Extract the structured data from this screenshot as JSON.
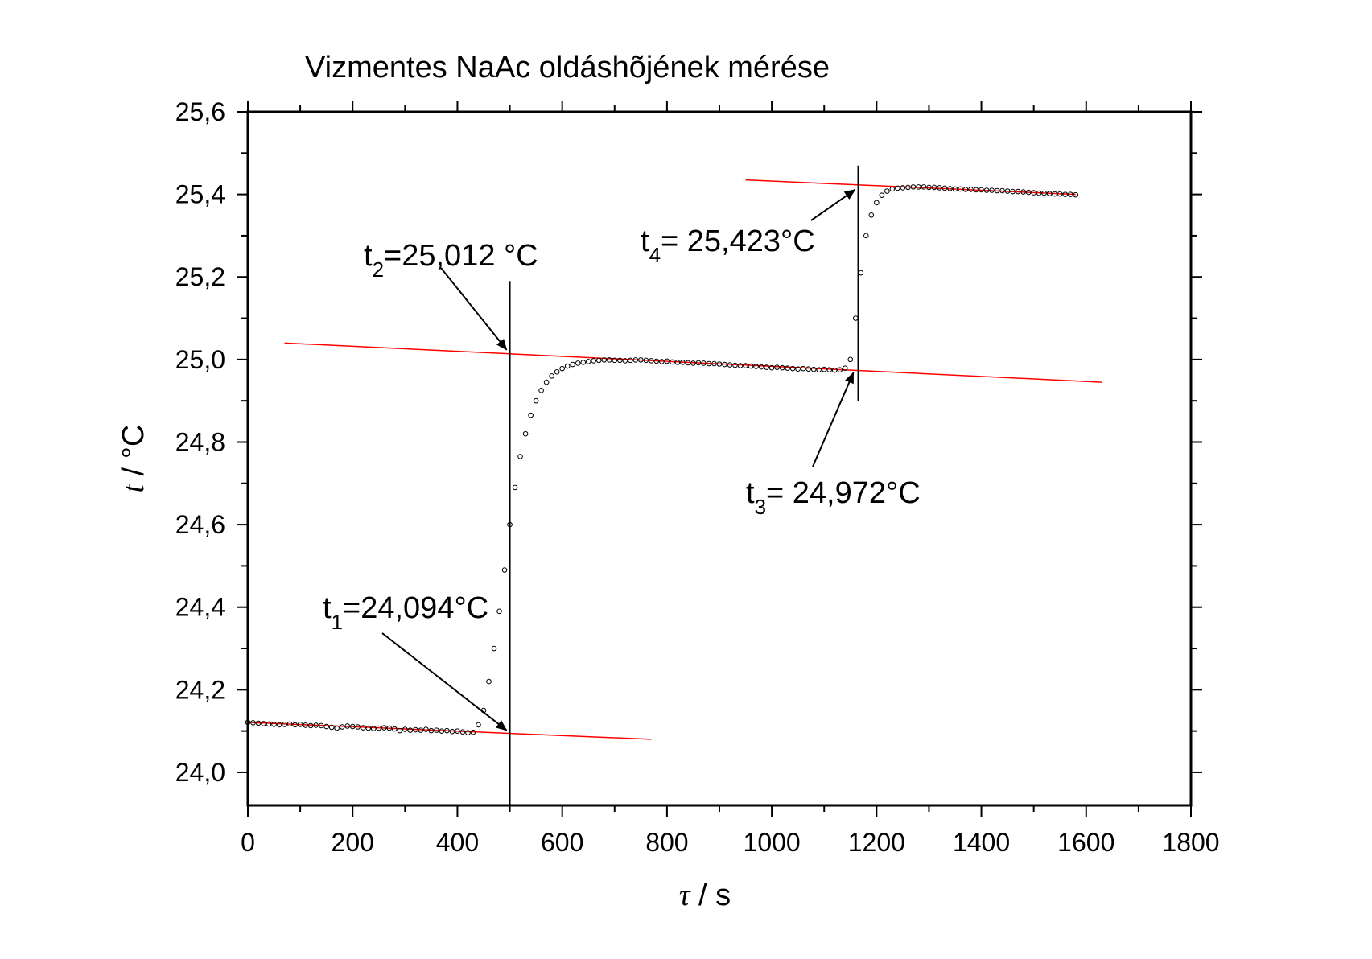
{
  "chart_data": {
    "type": "scatter",
    "title": "Vizmentes NaAc oldáshõjének mérése",
    "xlabel": {
      "symbol": "τ",
      "unit": " / s"
    },
    "ylabel": {
      "symbol": "t",
      "unit": " / °C"
    },
    "xlim": [
      0,
      1800
    ],
    "ylim": [
      23.92,
      25.6
    ],
    "x_ticks": [
      0,
      200,
      400,
      600,
      800,
      1000,
      1200,
      1400,
      1600,
      1800
    ],
    "x_tick_labels": [
      "0",
      "200",
      "400",
      "600",
      "800",
      "1000",
      "1200",
      "1400",
      "1600",
      "1800"
    ],
    "y_ticks": [
      24.0,
      24.2,
      24.4,
      24.6,
      24.8,
      25.0,
      25.2,
      25.4,
      25.6
    ],
    "y_tick_labels": [
      "24,0",
      "24,2",
      "24,4",
      "24,6",
      "24,8",
      "25,0",
      "25,2",
      "25,4",
      "25,6"
    ],
    "grid": false,
    "colors": {
      "points": "#000000",
      "fit_lines": "#ff0000",
      "vertical_lines": "#000000",
      "arrows": "#000000"
    },
    "measured_points": [
      [
        0,
        24.121
      ],
      [
        10,
        24.12
      ],
      [
        20,
        24.119
      ],
      [
        30,
        24.118
      ],
      [
        40,
        24.117
      ],
      [
        50,
        24.116
      ],
      [
        60,
        24.115
      ],
      [
        70,
        24.116
      ],
      [
        80,
        24.117
      ],
      [
        90,
        24.115
      ],
      [
        100,
        24.116
      ],
      [
        110,
        24.114
      ],
      [
        120,
        24.113
      ],
      [
        130,
        24.114
      ],
      [
        140,
        24.113
      ],
      [
        150,
        24.111
      ],
      [
        160,
        24.109
      ],
      [
        170,
        24.107
      ],
      [
        180,
        24.11
      ],
      [
        190,
        24.112
      ],
      [
        200,
        24.111
      ],
      [
        210,
        24.11
      ],
      [
        220,
        24.108
      ],
      [
        230,
        24.107
      ],
      [
        240,
        24.106
      ],
      [
        250,
        24.107
      ],
      [
        260,
        24.108
      ],
      [
        270,
        24.107
      ],
      [
        280,
        24.105
      ],
      [
        290,
        24.101
      ],
      [
        300,
        24.104
      ],
      [
        310,
        24.102
      ],
      [
        320,
        24.103
      ],
      [
        330,
        24.102
      ],
      [
        340,
        24.104
      ],
      [
        350,
        24.101
      ],
      [
        360,
        24.102
      ],
      [
        370,
        24.1
      ],
      [
        380,
        24.101
      ],
      [
        390,
        24.099
      ],
      [
        400,
        24.1
      ],
      [
        410,
        24.098
      ],
      [
        420,
        24.096
      ],
      [
        430,
        24.097
      ],
      [
        440,
        24.115
      ],
      [
        450,
        24.15
      ],
      [
        460,
        24.22
      ],
      [
        470,
        24.3
      ],
      [
        480,
        24.39
      ],
      [
        490,
        24.49
      ],
      [
        500,
        24.6
      ],
      [
        510,
        24.69
      ],
      [
        520,
        24.765
      ],
      [
        530,
        24.82
      ],
      [
        540,
        24.865
      ],
      [
        550,
        24.9
      ],
      [
        560,
        24.925
      ],
      [
        570,
        24.945
      ],
      [
        580,
        24.96
      ],
      [
        590,
        24.97
      ],
      [
        600,
        24.978
      ],
      [
        610,
        24.984
      ],
      [
        620,
        24.988
      ],
      [
        630,
        24.991
      ],
      [
        640,
        24.993
      ],
      [
        650,
        24.995
      ],
      [
        660,
        24.997
      ],
      [
        670,
        24.998
      ],
      [
        680,
        24.999
      ],
      [
        690,
        24.999
      ],
      [
        700,
        24.998
      ],
      [
        710,
        24.998
      ],
      [
        720,
        24.997
      ],
      [
        730,
        24.998
      ],
      [
        740,
        24.999
      ],
      [
        750,
        24.999
      ],
      [
        760,
        24.998
      ],
      [
        770,
        24.997
      ],
      [
        780,
        24.996
      ],
      [
        790,
        24.995
      ],
      [
        800,
        24.996
      ],
      [
        810,
        24.994
      ],
      [
        820,
        24.993
      ],
      [
        830,
        24.993
      ],
      [
        840,
        24.992
      ],
      [
        850,
        24.991
      ],
      [
        860,
        24.992
      ],
      [
        870,
        24.991
      ],
      [
        880,
        24.99
      ],
      [
        890,
        24.99
      ],
      [
        900,
        24.989
      ],
      [
        910,
        24.988
      ],
      [
        920,
        24.987
      ],
      [
        930,
        24.986
      ],
      [
        940,
        24.985
      ],
      [
        950,
        24.985
      ],
      [
        960,
        24.984
      ],
      [
        970,
        24.983
      ],
      [
        980,
        24.982
      ],
      [
        990,
        24.981
      ],
      [
        1000,
        24.98
      ],
      [
        1010,
        24.981
      ],
      [
        1020,
        24.98
      ],
      [
        1030,
        24.979
      ],
      [
        1040,
        24.978
      ],
      [
        1050,
        24.977
      ],
      [
        1060,
        24.978
      ],
      [
        1070,
        24.977
      ],
      [
        1080,
        24.976
      ],
      [
        1090,
        24.975
      ],
      [
        1100,
        24.976
      ],
      [
        1110,
        24.975
      ],
      [
        1120,
        24.974
      ],
      [
        1130,
        24.975
      ],
      [
        1140,
        24.979
      ],
      [
        1150,
        25.0
      ],
      [
        1160,
        25.1
      ],
      [
        1170,
        25.21
      ],
      [
        1180,
        25.3
      ],
      [
        1190,
        25.35
      ],
      [
        1200,
        25.38
      ],
      [
        1210,
        25.398
      ],
      [
        1220,
        25.408
      ],
      [
        1230,
        25.413
      ],
      [
        1240,
        25.415
      ],
      [
        1250,
        25.416
      ],
      [
        1260,
        25.417
      ],
      [
        1270,
        25.418
      ],
      [
        1280,
        25.418
      ],
      [
        1290,
        25.418
      ],
      [
        1300,
        25.417
      ],
      [
        1310,
        25.417
      ],
      [
        1320,
        25.416
      ],
      [
        1330,
        25.415
      ],
      [
        1340,
        25.414
      ],
      [
        1350,
        25.413
      ],
      [
        1360,
        25.413
      ],
      [
        1370,
        25.412
      ],
      [
        1380,
        25.412
      ],
      [
        1390,
        25.411
      ],
      [
        1400,
        25.411
      ],
      [
        1410,
        25.41
      ],
      [
        1420,
        25.41
      ],
      [
        1430,
        25.409
      ],
      [
        1440,
        25.409
      ],
      [
        1450,
        25.408
      ],
      [
        1460,
        25.407
      ],
      [
        1470,
        25.407
      ],
      [
        1480,
        25.406
      ],
      [
        1490,
        25.405
      ],
      [
        1500,
        25.404
      ],
      [
        1510,
        25.403
      ],
      [
        1520,
        25.403
      ],
      [
        1530,
        25.402
      ],
      [
        1540,
        25.401
      ],
      [
        1550,
        25.401
      ],
      [
        1560,
        25.4
      ],
      [
        1570,
        25.4
      ],
      [
        1580,
        25.399
      ]
    ],
    "fit_lines": [
      {
        "x": [
          0,
          770
        ],
        "y": [
          24.121,
          24.08
        ]
      },
      {
        "x": [
          70,
          1630
        ],
        "y": [
          25.04,
          24.945
        ]
      },
      {
        "x": [
          950,
          1580
        ],
        "y": [
          25.435,
          25.4
        ]
      }
    ],
    "vertical_lines": [
      {
        "x": 500,
        "y": [
          23.92,
          25.19
        ]
      },
      {
        "x": 1165,
        "y": [
          24.9,
          25.47
        ]
      }
    ],
    "annotations": [
      {
        "main": "t",
        "sub": "1",
        "rest": "=24,094°C",
        "target": [
          500,
          24.094
        ]
      },
      {
        "main": "t",
        "sub": "2",
        "rest": "=25,012 °C",
        "target": [
          500,
          25.012
        ]
      },
      {
        "main": "t",
        "sub": "3",
        "rest": "= 24,972°C",
        "target": [
          1165,
          24.972
        ]
      },
      {
        "main": "t",
        "sub": "4",
        "rest": "= 25,423°C",
        "target": [
          1165,
          25.423
        ]
      }
    ]
  }
}
